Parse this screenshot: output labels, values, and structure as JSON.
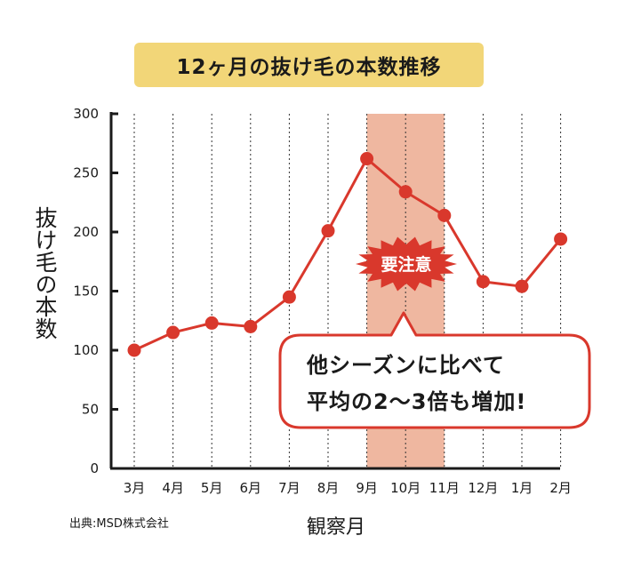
{
  "title": "12ヶ月の抜け毛の本数推移",
  "source": "出典:MSD株式会社",
  "callout": {
    "line1": "他シーズンに比べて",
    "line2": "平均の2〜3倍も増加!"
  },
  "warning_badge": "要注意",
  "colors": {
    "title_bg": "#f2d678",
    "line": "#d9382c",
    "highlight": "#efb7a0",
    "text": "#1a1a1a"
  },
  "chart_data": {
    "type": "line",
    "title": "12ヶ月の抜け毛の本数推移",
    "xlabel": "観察月",
    "ylabel": "抜け毛の本数",
    "categories": [
      "3月",
      "4月",
      "5月",
      "6月",
      "7月",
      "8月",
      "9月",
      "10月",
      "11月",
      "12月",
      "1月",
      "2月"
    ],
    "series": [
      {
        "values": [
          100,
          115,
          123,
          120,
          145,
          201,
          262,
          234,
          214,
          158,
          154,
          194
        ]
      }
    ],
    "ylim": [
      0,
      300
    ],
    "yticks": [
      0,
      50,
      100,
      150,
      200,
      250,
      300
    ],
    "highlight_range": [
      "9月",
      "11月"
    ],
    "grid": "vertical dotted lines at each month"
  }
}
